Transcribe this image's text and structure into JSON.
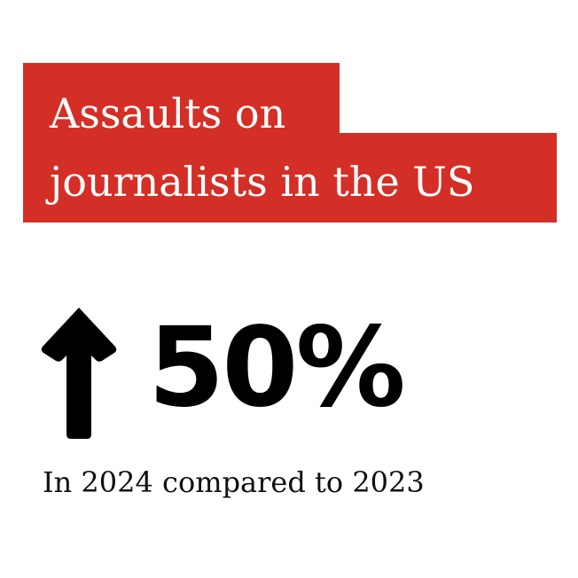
{
  "title": {
    "line1": "Assaults on",
    "line2": "journalists in the US"
  },
  "stat": {
    "direction_icon": "arrow-up-icon",
    "value": "50%"
  },
  "caption": "In 2024 compared to 2023",
  "colors": {
    "accent": "#d32f26",
    "title_text": "#ffffff",
    "body_text": "#000000"
  }
}
